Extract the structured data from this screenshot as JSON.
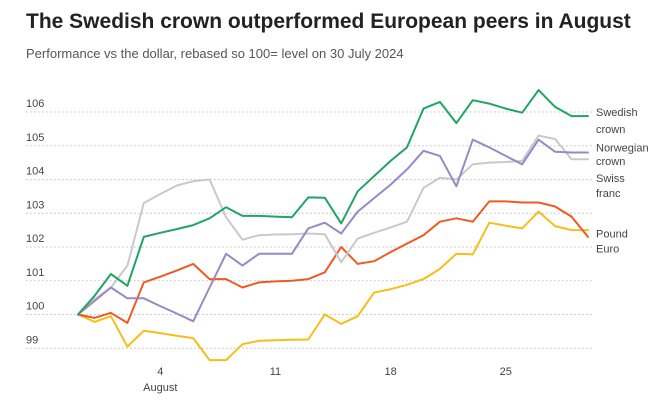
{
  "chart_data": {
    "type": "line",
    "title": "The Swedish crown outperformed European peers in August",
    "subtitle": "Performance vs the dollar, rebased so 100= level on 30 July 2024",
    "xlabel": "",
    "ylabel": "",
    "xlim": [
      0,
      31
    ],
    "ylim": [
      98.8,
      106.8
    ],
    "x_ticks": [
      {
        "value": 5,
        "label": "4",
        "sublabel": "August"
      },
      {
        "value": 12,
        "label": "11",
        "sublabel": ""
      },
      {
        "value": 19,
        "label": "18",
        "sublabel": ""
      },
      {
        "value": 26,
        "label": "25",
        "sublabel": ""
      }
    ],
    "y_ticks": [
      99,
      100,
      101,
      102,
      103,
      104,
      105,
      106
    ],
    "grid": "horizontal-dotted",
    "legend": "end-of-line labels on right",
    "x": [
      0,
      1,
      2,
      3,
      4,
      5,
      6,
      7,
      8,
      9,
      10,
      11,
      12,
      13,
      14,
      15,
      16,
      17,
      18,
      19,
      20,
      21,
      22,
      23,
      24,
      25,
      26,
      27,
      28,
      29,
      30,
      31
    ],
    "series": [
      {
        "name": "Swedish crown",
        "color": "#22a463",
        "values": [
          100.0,
          100.55,
          101.2,
          100.85,
          102.3,
          102.42,
          102.53,
          102.65,
          102.85,
          103.18,
          102.92,
          102.92,
          102.9,
          102.88,
          103.47,
          103.46,
          102.7,
          103.65,
          104.1,
          104.55,
          104.95,
          106.1,
          106.3,
          105.67,
          106.35,
          106.25,
          106.1,
          105.98,
          106.65,
          106.15,
          105.88,
          105.88
        ]
      },
      {
        "name": "Norwegian crown",
        "color": "#9b87c6",
        "values": [
          100.0,
          100.4,
          100.8,
          100.48,
          100.48,
          100.25,
          100.03,
          99.8,
          100.8,
          101.8,
          101.45,
          101.8,
          101.8,
          101.8,
          102.55,
          102.72,
          102.4,
          103.05,
          103.45,
          103.85,
          104.3,
          104.85,
          104.7,
          103.8,
          105.18,
          104.95,
          104.7,
          104.45,
          105.18,
          104.82,
          104.8,
          104.8
        ]
      },
      {
        "name": "Swiss franc",
        "color": "#c9c9c9",
        "values": [
          100.0,
          100.45,
          100.8,
          101.45,
          103.3,
          103.57,
          103.82,
          103.95,
          104.0,
          102.88,
          102.22,
          102.35,
          102.37,
          102.38,
          102.4,
          102.38,
          101.55,
          102.25,
          102.42,
          102.58,
          102.75,
          103.75,
          104.05,
          104.0,
          104.45,
          104.5,
          104.52,
          104.55,
          105.3,
          105.2,
          104.6,
          104.6
        ]
      },
      {
        "name": "Pound",
        "color": "#f05a22",
        "values": [
          100.0,
          99.9,
          100.05,
          99.75,
          100.95,
          101.12,
          101.3,
          101.5,
          101.05,
          101.05,
          100.8,
          100.95,
          100.98,
          101.0,
          101.05,
          101.25,
          102.0,
          101.5,
          101.58,
          101.85,
          102.1,
          102.35,
          102.75,
          102.85,
          102.75,
          103.35,
          103.35,
          103.32,
          103.32,
          103.2,
          102.9,
          102.3
        ]
      },
      {
        "name": "Euro",
        "color": "#f7bd1a",
        "values": [
          100.0,
          99.78,
          99.95,
          99.05,
          99.52,
          99.45,
          99.37,
          99.3,
          98.65,
          98.65,
          99.12,
          99.22,
          99.24,
          99.25,
          99.26,
          100.0,
          99.72,
          99.95,
          100.65,
          100.75,
          100.88,
          101.05,
          101.35,
          101.8,
          101.78,
          102.72,
          102.63,
          102.55,
          103.05,
          102.62,
          102.5,
          102.5
        ]
      }
    ]
  }
}
